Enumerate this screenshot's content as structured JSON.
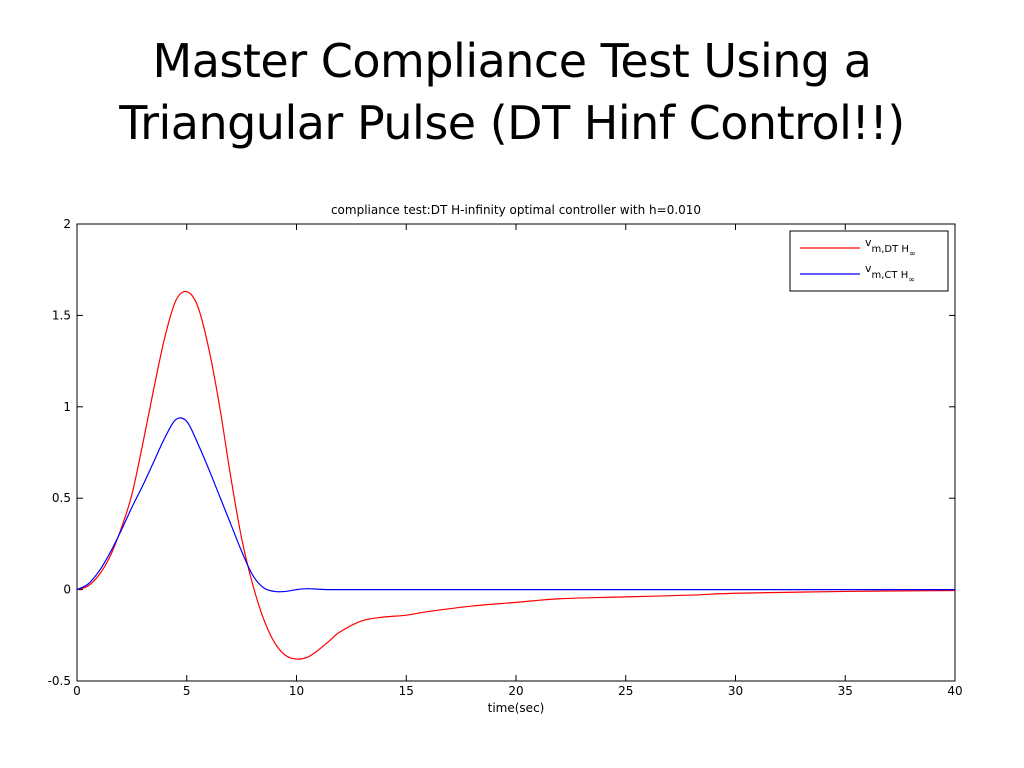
{
  "slide": {
    "title_line1": "Master Compliance Test Using a",
    "title_line2": "Triangular Pulse (DT Hinf Control!!)"
  },
  "chart_data": {
    "type": "line",
    "title": "compliance test:DT H-infinity optimal controller with h=0.010",
    "xlabel": "time(sec)",
    "ylabel": "",
    "xlim": [
      0,
      40
    ],
    "ylim": [
      -0.5,
      2
    ],
    "xticks": [
      0,
      5,
      10,
      15,
      20,
      25,
      30,
      35,
      40
    ],
    "xtick_labels": [
      "0",
      "5",
      "10",
      "15",
      "20",
      "25",
      "30",
      "35",
      "40"
    ],
    "yticks": [
      -0.5,
      0,
      0.5,
      1,
      1.5,
      2
    ],
    "ytick_labels": [
      "-0.5",
      "0",
      "0.5",
      "1",
      "1.5",
      "2"
    ],
    "grid": false,
    "legend_position": "top-right",
    "series": [
      {
        "name": "v_m,DT H∞",
        "legend_main": "v",
        "legend_sub": "m,DT H",
        "legend_subsub": "∞",
        "color": "#ff0000",
        "x": [
          0,
          0.5,
          1,
          1.5,
          2,
          2.5,
          3,
          3.5,
          4,
          4.5,
          5,
          5.5,
          6,
          6.5,
          7,
          7.5,
          8,
          8.5,
          9,
          9.5,
          10,
          10.5,
          11,
          11.5,
          12,
          13,
          14,
          15,
          16,
          18,
          20,
          22,
          25,
          28,
          30,
          35,
          40
        ],
        "y": [
          0,
          0.02,
          0.08,
          0.18,
          0.33,
          0.52,
          0.8,
          1.1,
          1.38,
          1.58,
          1.63,
          1.55,
          1.32,
          1.0,
          0.62,
          0.28,
          0.03,
          -0.16,
          -0.29,
          -0.36,
          -0.38,
          -0.37,
          -0.33,
          -0.28,
          -0.23,
          -0.17,
          -0.15,
          -0.14,
          -0.12,
          -0.09,
          -0.07,
          -0.05,
          -0.04,
          -0.03,
          -0.02,
          -0.01,
          -0.005
        ]
      },
      {
        "name": "v_m,CT H∞",
        "legend_main": "v",
        "legend_sub": "m,CT H",
        "legend_subsub": "∞",
        "color": "#0000ff",
        "x": [
          0,
          0.5,
          1,
          1.5,
          2,
          2.5,
          3,
          3.5,
          4,
          4.5,
          5,
          5.5,
          6,
          6.5,
          7,
          7.5,
          8,
          8.5,
          9,
          9.5,
          10,
          10.5,
          11,
          11.5,
          12,
          15,
          20,
          30,
          40
        ],
        "y": [
          0,
          0.03,
          0.1,
          0.2,
          0.32,
          0.45,
          0.57,
          0.7,
          0.83,
          0.93,
          0.92,
          0.8,
          0.66,
          0.51,
          0.36,
          0.21,
          0.08,
          0.01,
          -0.01,
          -0.01,
          0.0,
          0.005,
          0.002,
          0.0,
          0.0,
          0.0,
          0.0,
          0.0,
          0.0
        ]
      }
    ]
  }
}
